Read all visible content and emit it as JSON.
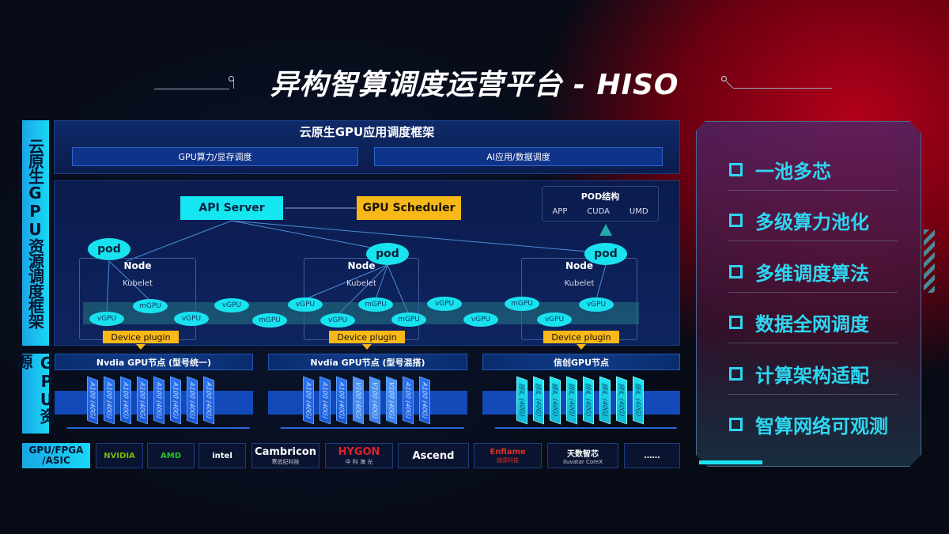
{
  "title": "异构智算调度运营平台 - HISO",
  "left_labels": {
    "framework": "云原生GPU资源调度框架",
    "resource": "GPU资源",
    "chip_types": "GPU/FPGA /ASIC"
  },
  "framework": {
    "title": "云原生GPU应用调度框架",
    "sub": [
      "GPU算力/显存调度",
      "AI应用/数据调度"
    ]
  },
  "diagram": {
    "api_server": "API Server",
    "scheduler": "GPU Scheduler",
    "pod_struct": {
      "title": "POD结构",
      "items": [
        "APP",
        "CUDA",
        "UMD"
      ]
    },
    "pod": "pod",
    "node": "Node",
    "kubelet": "Kubelet",
    "device_plugin": "Device plugin",
    "vgpu": "vGPU",
    "mgpu": "mGPU"
  },
  "gpu_groups": [
    {
      "title": "Nvdia GPU节点 (型号统一)",
      "cards": [
        "A100 (40G)",
        "A100 (40G)",
        "A100 (40G)",
        "A100 (40G)",
        "A100 (40G)",
        "A100 (40G)",
        "A100 (40G)",
        "A100 (40G)"
      ]
    },
    {
      "title": "Nvdia GPU节点 (型号混搭)",
      "cards": [
        "A100 (40G)",
        "A100 (40G)",
        "A100 (40G)",
        "V100 (40G)",
        "V100 (40G)",
        "V100 (40G)",
        "A100 (40G)",
        "A100 (40G)"
      ]
    },
    {
      "title": "信创GPU节点",
      "cards": [
        "国产 (40G)",
        "国产 (40G)",
        "国产 (40G)",
        "国产 (40G)",
        "国产 (40G)",
        "国产 (40G)",
        "国产 (40G)",
        "国产 (40G)"
      ]
    }
  ],
  "vendors": [
    {
      "name": "NVIDIA",
      "sub": "",
      "color": "#76b900"
    },
    {
      "name": "AMD",
      "sub": "",
      "color": "#2bc02b"
    },
    {
      "name": "intel",
      "sub": "",
      "color": "#ffffff"
    },
    {
      "name": "Cambricon",
      "sub": "寒武纪科技",
      "color": "#ffffff"
    },
    {
      "name": "HYGON",
      "sub": "中 科 海 光",
      "color": "#e0202a"
    },
    {
      "name": "Ascend",
      "sub": "",
      "color": "#ffffff"
    },
    {
      "name": "Enflame",
      "sub": "燧原科技",
      "color": "#e0302a"
    },
    {
      "name": "天数智芯",
      "sub": "Iluvatar CoreX",
      "color": "#ffffff"
    },
    {
      "name": "……",
      "sub": "",
      "color": "#ffffff"
    }
  ],
  "features": [
    "一池多芯",
    "多级算力池化",
    "多维调度算法",
    "数据全网调度",
    "计算架构适配",
    "智算网络可观测"
  ],
  "colors": {
    "cyan": "#19e2ef",
    "orange": "#f7b818",
    "blue": "#1349b8",
    "red": "#b3001a"
  }
}
